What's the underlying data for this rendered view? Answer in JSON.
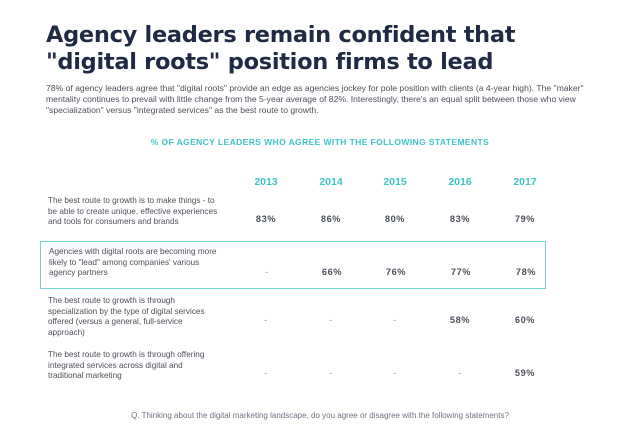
{
  "title": "Agency leaders remain confident that \"digital roots\" position firms to lead",
  "intro": "78% of agency leaders agree that \"digital roots\" provide an edge as agencies jockey for pole position with clients (a 4-year high). The \"maker\" mentality continues to prevail with little change from the 5-year average of 82%. Interestingly, there's an equal split between those who view \"specialization\" versus \"integrated services\" as the best route to growth.",
  "question": "Q. Thinking about the digital marketing landscape, do you agree or disagree with the following statements?",
  "colors": {
    "accent": "#3cc3c8",
    "title": "#1f2a44",
    "text": "#4a4f5a"
  },
  "chart_data": {
    "type": "table",
    "title": "% OF AGENCY LEADERS WHO AGREE WITH THE FOLLOWING STATEMENTS",
    "columns": [
      "2013",
      "2014",
      "2015",
      "2016",
      "2017"
    ],
    "highlighted_row": 1,
    "rows": [
      {
        "label": "The best route to growth is to make things - to be able to create unique, effective experiences and tools for consumers and brands",
        "values": [
          "83%",
          "86%",
          "80%",
          "83%",
          "79%"
        ]
      },
      {
        "label": "Agencies with digital roots are becoming more likely to \"lead\" among companies' various agency partners",
        "values": [
          "-",
          "66%",
          "76%",
          "77%",
          "78%"
        ]
      },
      {
        "label": "The best route to growth is through specialization by the type of digital services offered (versus a general, full-service approach)",
        "values": [
          "-",
          "-",
          "-",
          "58%",
          "60%"
        ]
      },
      {
        "label": "The best route to growth is through offering integrated services across digital and traditional marketing",
        "values": [
          "-",
          "-",
          "-",
          "-",
          "59%"
        ]
      }
    ]
  }
}
